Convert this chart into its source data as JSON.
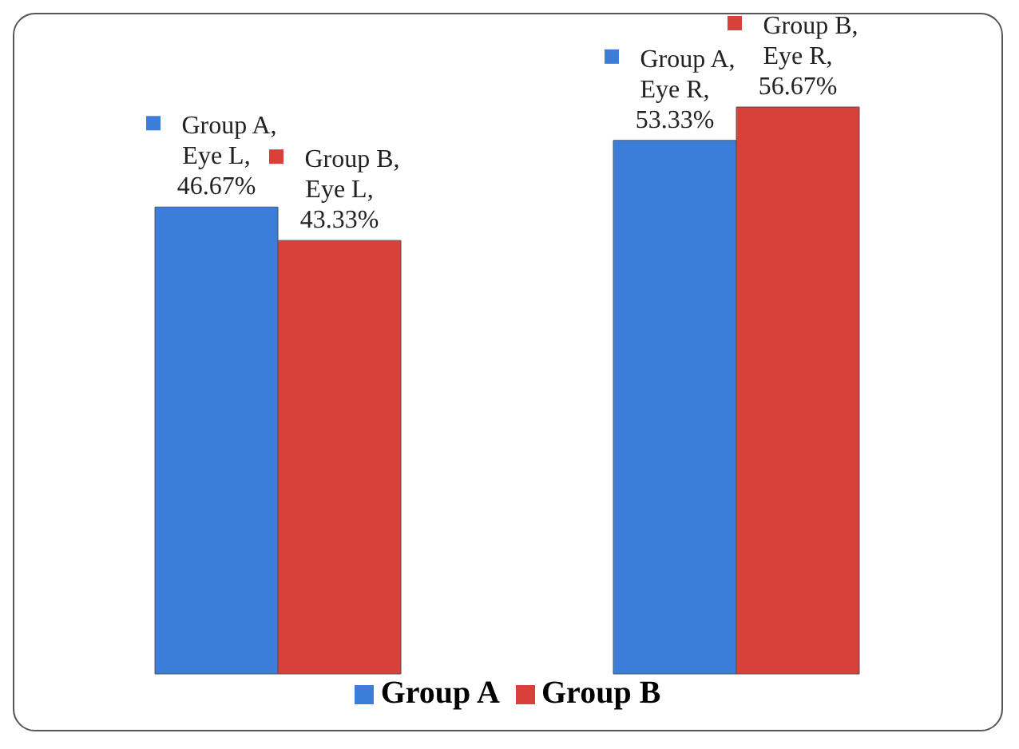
{
  "chart_data": {
    "type": "bar",
    "categories": [
      null,
      null
    ],
    "series": [
      {
        "name": "Group A",
        "color": "#3b7dd8",
        "values": [
          46.67,
          53.33
        ],
        "value_labels": [
          "Group A, Eye L, 46.67%",
          "Group A, Eye R, 53.33%"
        ]
      },
      {
        "name": "Group B",
        "color": "#d8403a",
        "values": [
          43.33,
          56.67
        ],
        "value_labels": [
          "Group B, Eye L, 43.33%",
          "Group B, Eye R, 56.67%"
        ]
      }
    ],
    "legend": "bottom",
    "grid": false
  }
}
